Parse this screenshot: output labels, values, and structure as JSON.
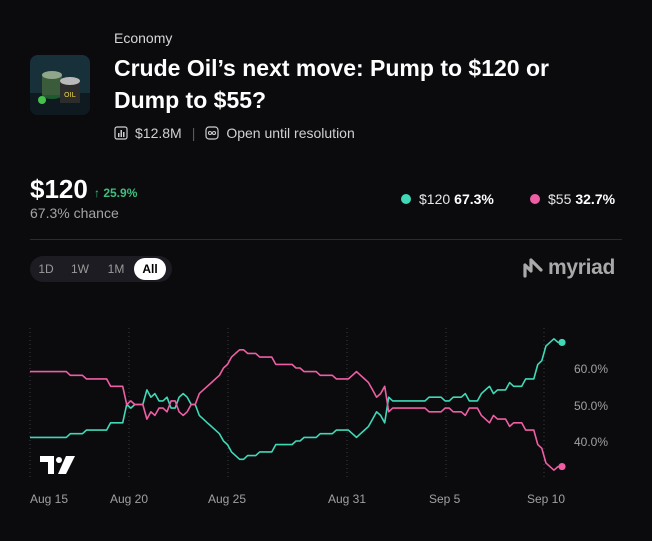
{
  "market": {
    "category": "Economy",
    "title": "Crude Oil’s next move: Pump to $120 or Dump to $55?",
    "volume": "$12.8M",
    "status": "Open until resolution"
  },
  "headline": {
    "price": "$120",
    "delta": "↑ 25.9%",
    "chance": "67.3% chance"
  },
  "legend": [
    {
      "label": "$120",
      "value": "67.3%",
      "color": "#3fd9b8"
    },
    {
      "label": "$55",
      "value": "32.7%",
      "color": "#ef5ea5"
    }
  ],
  "tabs": [
    "1D",
    "1W",
    "1M",
    "All"
  ],
  "active_tab": "All",
  "brand": "myriad",
  "chart_data": {
    "type": "line",
    "x_tick_labels": [
      "Aug 15",
      "Aug 20",
      "Aug 25",
      "Aug 31",
      "Sep 5",
      "Sep 10"
    ],
    "y_tick_labels": [
      "60.0%",
      "50.0%",
      "40.0%"
    ],
    "series": [
      {
        "name": "$120",
        "color": "#3fd9b8",
        "values": [
          41,
          41,
          41,
          41,
          41,
          41,
          41,
          41,
          41,
          41,
          42,
          42,
          42,
          42,
          43,
          43,
          43,
          43,
          43,
          43,
          45,
          45,
          45,
          45,
          50,
          49,
          50,
          50,
          50,
          54,
          52,
          53,
          51,
          51,
          52,
          49,
          49,
          52,
          53,
          52,
          50,
          50,
          47,
          46,
          45,
          44,
          43,
          42,
          40,
          39,
          37,
          36,
          35,
          35,
          36,
          36,
          36,
          37,
          37,
          37,
          37,
          39,
          39,
          39,
          39,
          39,
          40,
          40,
          41,
          41,
          41,
          41,
          42,
          42,
          42,
          42,
          43,
          43,
          43,
          43,
          42,
          41,
          42,
          43,
          44,
          46,
          48,
          47,
          45,
          52,
          51,
          51,
          51,
          51,
          51,
          51,
          51,
          51,
          51,
          52,
          52,
          52,
          52,
          51,
          51,
          52,
          52,
          52,
          53,
          51,
          51,
          51,
          53,
          54,
          55,
          53,
          54,
          54,
          54,
          56,
          55,
          55,
          55,
          57,
          57,
          57,
          61,
          62,
          66,
          67,
          68,
          67,
          67
        ]
      },
      {
        "name": "$55",
        "color": "#ef5ea5",
        "values": [
          59,
          59,
          59,
          59,
          59,
          59,
          59,
          59,
          59,
          59,
          58,
          58,
          58,
          58,
          57,
          57,
          57,
          57,
          57,
          57,
          55,
          55,
          55,
          55,
          50,
          51,
          50,
          50,
          50,
          46,
          48,
          47,
          49,
          49,
          48,
          51,
          51,
          48,
          47,
          48,
          50,
          50,
          53,
          54,
          55,
          56,
          57,
          58,
          60,
          61,
          63,
          64,
          65,
          65,
          64,
          64,
          64,
          63,
          63,
          63,
          63,
          61,
          61,
          61,
          61,
          61,
          60,
          60,
          59,
          59,
          59,
          59,
          58,
          58,
          58,
          58,
          57,
          57,
          57,
          57,
          58,
          59,
          58,
          57,
          56,
          54,
          52,
          53,
          55,
          48,
          49,
          49,
          49,
          49,
          49,
          49,
          49,
          49,
          49,
          48,
          48,
          48,
          48,
          49,
          49,
          48,
          48,
          48,
          47,
          49,
          49,
          49,
          47,
          46,
          45,
          47,
          46,
          46,
          46,
          44,
          45,
          45,
          45,
          43,
          43,
          43,
          39,
          38,
          34,
          33,
          32,
          33,
          33
        ]
      }
    ],
    "ylim": [
      30,
      70
    ]
  }
}
